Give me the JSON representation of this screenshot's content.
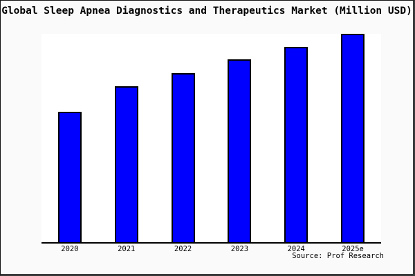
{
  "title": "Global Sleep Apnea Diagnostics and Therapeutics Market (Million USD)",
  "source_label": "Source: Prof Research",
  "colors": {
    "bar_fill": "#0000ff",
    "bar_edge": "#000000",
    "figure_bg": "#fafafa",
    "plot_bg": "#ffffff",
    "axis": "#000000"
  },
  "chart_data": {
    "type": "bar",
    "title": "Global Sleep Apnea Diagnostics and Therapeutics Market (Million USD)",
    "categories": [
      "2020",
      "2021",
      "2022",
      "2023",
      "2024",
      "2025e"
    ],
    "values": [
      62.5,
      74.9,
      81.2,
      87.6,
      93.7,
      100
    ],
    "values_note": "relative bar heights in % of tallest bar; no y-axis tick labels are shown in the chart",
    "xlabel": "",
    "ylabel": "",
    "ylim": [
      0,
      100
    ],
    "grid": false,
    "legend": false,
    "y_axis_visible": false,
    "source": "Source: Prof Research"
  }
}
